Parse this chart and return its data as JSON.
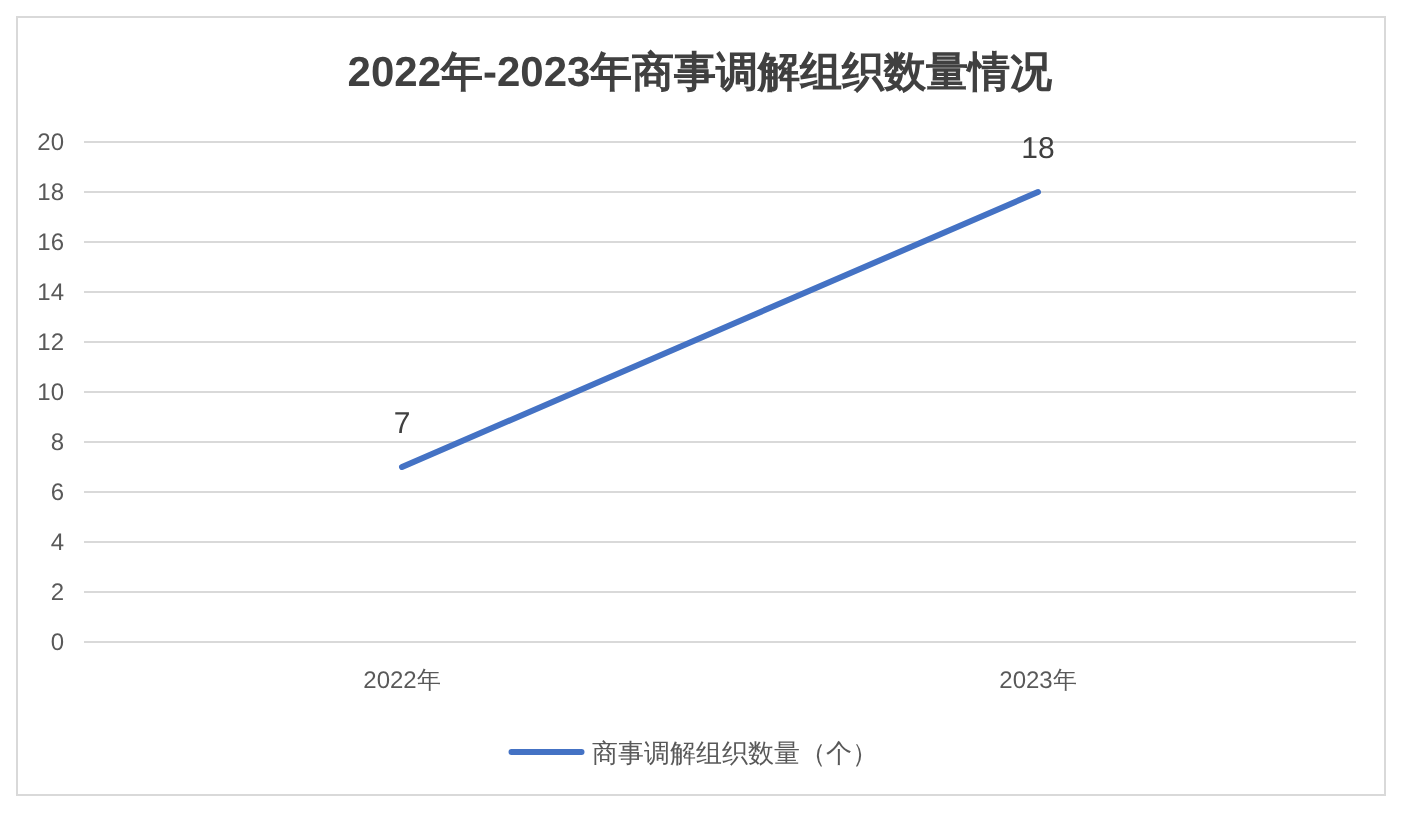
{
  "chart_data": {
    "type": "line",
    "title": "2022年-2023年商事调解组织数量情况",
    "categories": [
      "2022年",
      "2023年"
    ],
    "series": [
      {
        "name": "商事调解组织数量（个）",
        "color": "#4472c4",
        "values": [
          7,
          18
        ]
      }
    ],
    "ylim": [
      0,
      20
    ],
    "yticks": [
      0,
      2,
      4,
      6,
      8,
      10,
      12,
      14,
      16,
      18,
      20
    ],
    "grid": "y",
    "data_labels": true,
    "legend": "bottom",
    "marker": "none",
    "line_style": "solid"
  }
}
